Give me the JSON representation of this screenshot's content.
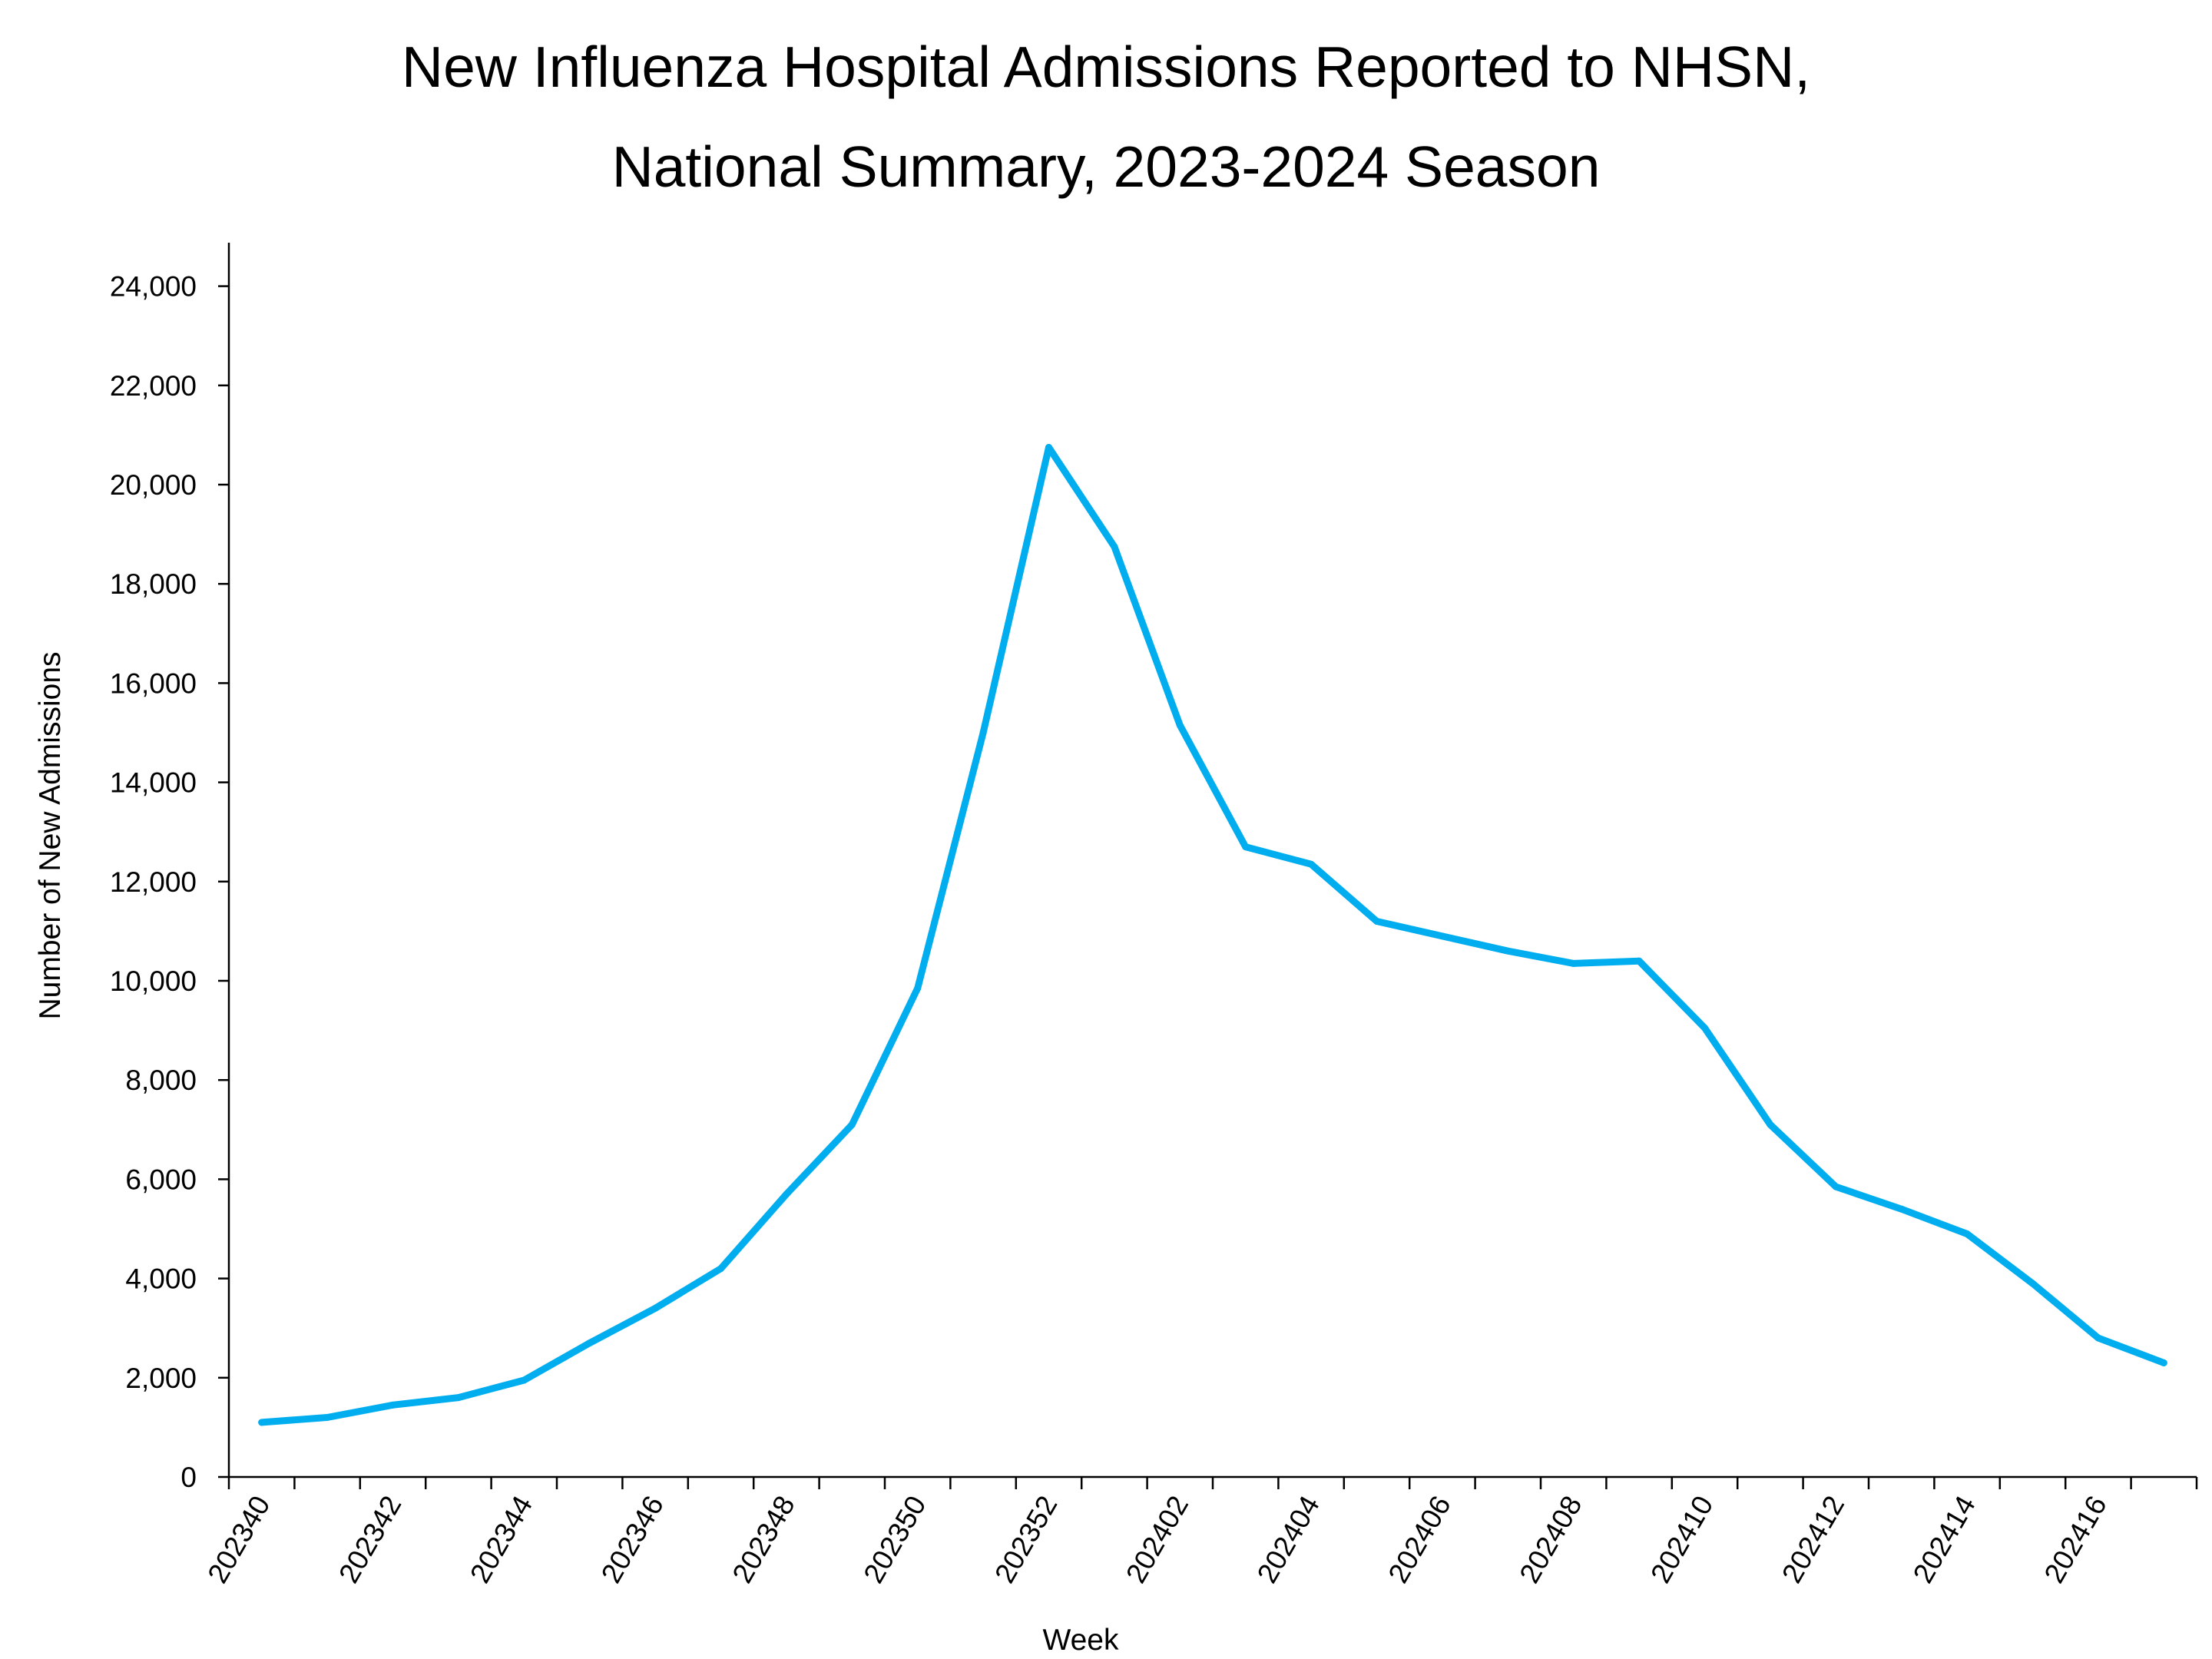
{
  "chart_data": {
    "type": "line",
    "title": [
      "New Influenza Hospital Admissions Reported to NHSN,",
      "National Summary, 2023-2024 Season"
    ],
    "xlabel": "Week",
    "ylabel": "Number of New Admissions",
    "ylim": [
      0,
      25000
    ],
    "yticks": [
      0,
      2000,
      4000,
      6000,
      8000,
      10000,
      12000,
      14000,
      16000,
      18000,
      20000,
      22000,
      24000
    ],
    "ytick_labels": [
      "0",
      "2,000",
      "4,000",
      "6,000",
      "8,000",
      "10,000",
      "12,000",
      "14,000",
      "16,000",
      "18,000",
      "20,000",
      "22,000",
      "24,000"
    ],
    "x": [
      "202340",
      "202341",
      "202342",
      "202343",
      "202344",
      "202345",
      "202346",
      "202347",
      "202348",
      "202349",
      "202350",
      "202351",
      "202352",
      "202401",
      "202402",
      "202403",
      "202404",
      "202405",
      "202406",
      "202407",
      "202408",
      "202409",
      "202410",
      "202411",
      "202412",
      "202413",
      "202414",
      "202415",
      "202416",
      "202417"
    ],
    "xtick_labels": [
      "202340",
      "202342",
      "202344",
      "202346",
      "202348",
      "202350",
      "202352",
      "202402",
      "202404",
      "202406",
      "202408",
      "202410",
      "202412",
      "202414",
      "202416"
    ],
    "series": [
      {
        "color": "#00AEEF",
        "values": [
          1100,
          1200,
          1450,
          1600,
          1950,
          2700,
          3400,
          4200,
          5700,
          7100,
          9850,
          15000,
          20750,
          18750,
          15150,
          12700,
          12350,
          11200,
          10900,
          10600,
          10350,
          10400,
          9050,
          7100,
          5850,
          5400,
          4900,
          3900,
          2800,
          2300
        ]
      }
    ],
    "grid": false,
    "legend": "none"
  }
}
